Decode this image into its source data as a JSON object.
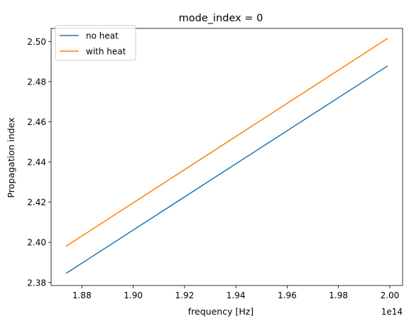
{
  "chart_data": {
    "type": "line",
    "title": "mode_index = 0",
    "xlabel": "frequency [Hz]",
    "ylabel": "Propagation index",
    "x_offset_label": "1e14",
    "xlim": [
      1.868,
      2.005
    ],
    "ylim": [
      2.3785,
      2.5065
    ],
    "x_ticks": [
      1.88,
      1.9,
      1.92,
      1.94,
      1.96,
      1.98,
      2.0
    ],
    "x_tick_labels": [
      "1.88",
      "1.90",
      "1.92",
      "1.94",
      "1.96",
      "1.98",
      "2.00"
    ],
    "y_ticks": [
      2.38,
      2.4,
      2.42,
      2.44,
      2.46,
      2.48,
      2.5
    ],
    "y_tick_labels": [
      "2.38",
      "2.40",
      "2.42",
      "2.44",
      "2.46",
      "2.48",
      "2.50"
    ],
    "grid": false,
    "legend_position": "top-left",
    "series": [
      {
        "name": "no heat",
        "color": "#1f77b4",
        "x": [
          1.874,
          1.999
        ],
        "y": [
          2.3847,
          2.4877
        ]
      },
      {
        "name": "with heat",
        "color": "#ff7f0e",
        "x": [
          1.874,
          1.999
        ],
        "y": [
          2.3982,
          2.5014
        ]
      }
    ]
  }
}
